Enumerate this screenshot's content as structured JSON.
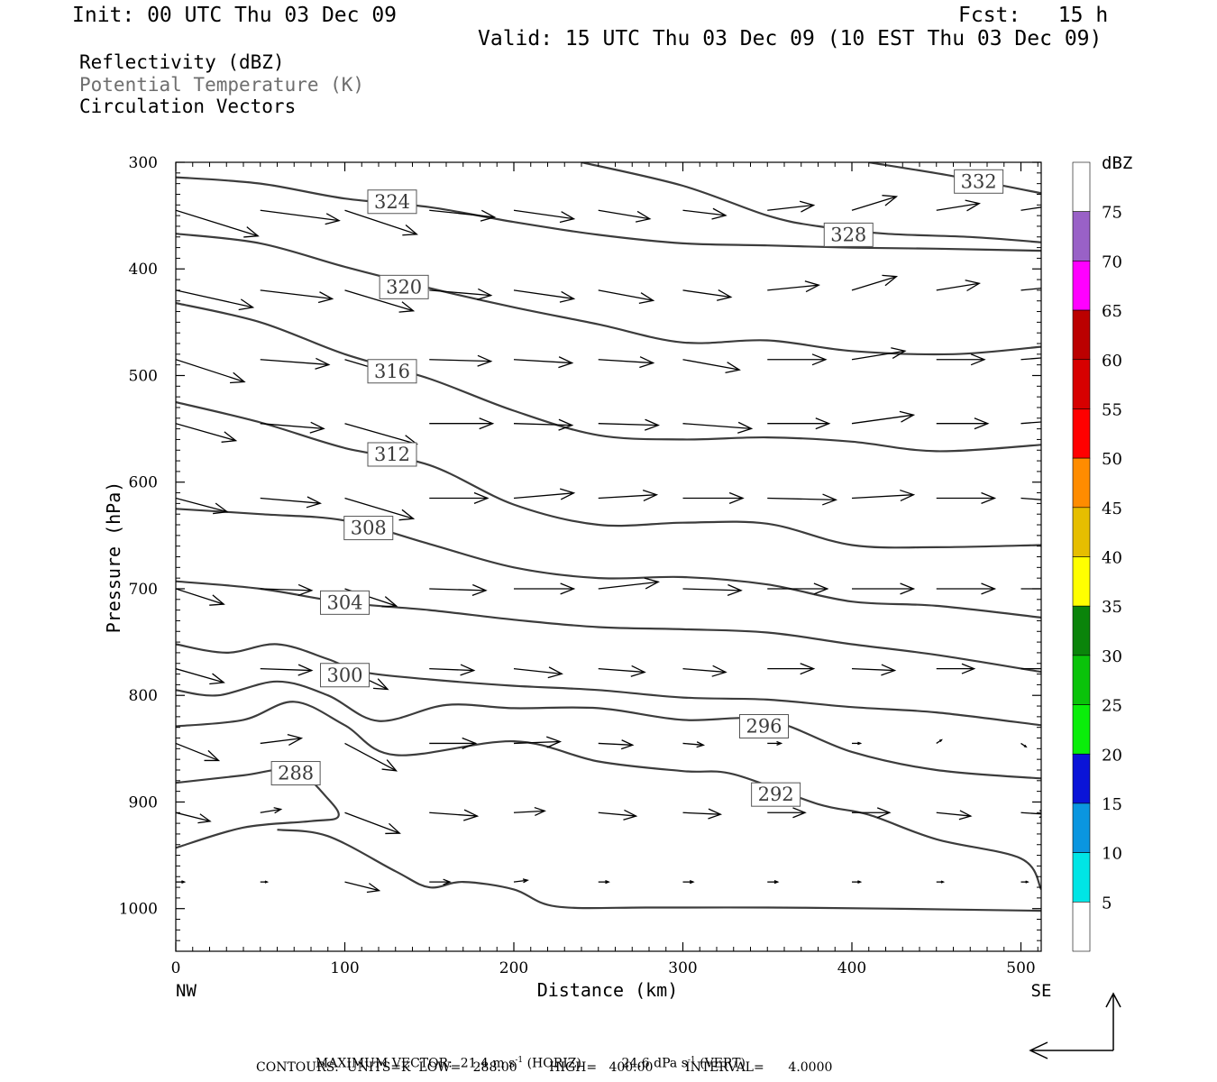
{
  "header": {
    "init": "Init: 00 UTC Thu 03 Dec 09",
    "fcst": "Fcst:   15 h",
    "valid": "Valid: 15 UTC Thu 03 Dec 09 (10 EST Thu 03 Dec 09)"
  },
  "fields": [
    {
      "label": "Reflectivity (dBZ)",
      "color": "#000000"
    },
    {
      "label": "Potential Temperature (K)",
      "color": "#6e6e6e"
    },
    {
      "label": "Circulation Vectors",
      "color": "#000000"
    }
  ],
  "chart_data": {
    "type": "line",
    "xlabel": "Distance (km)",
    "ylabel": "Pressure (hPa)",
    "xlim": [
      0,
      512
    ],
    "ylim": [
      1040,
      300
    ],
    "x_ticks": [
      "0",
      "100",
      "200",
      "300",
      "400",
      "500"
    ],
    "y_ticks": [
      "300",
      "400",
      "500",
      "600",
      "700",
      "800",
      "900",
      "1000"
    ],
    "x_end_labels": {
      "left": "NW",
      "right": "SE"
    },
    "theta_contours": [
      {
        "name": "324",
        "label_at": [
          128,
          337
        ],
        "points": [
          [
            0,
            314
          ],
          [
            50,
            320
          ],
          [
            100,
            334
          ],
          [
            150,
            342
          ],
          [
            200,
            356
          ],
          [
            250,
            368
          ],
          [
            300,
            376
          ],
          [
            350,
            378
          ],
          [
            400,
            380
          ],
          [
            450,
            381
          ],
          [
            512,
            383
          ]
        ]
      },
      {
        "name": "332",
        "label_at": [
          475,
          318
        ],
        "points": [
          [
            410,
            300
          ],
          [
            460,
            313
          ],
          [
            512,
            329
          ]
        ]
      },
      {
        "name": "328",
        "label_at": [
          398,
          368
        ],
        "points": [
          [
            240,
            300
          ],
          [
            300,
            322
          ],
          [
            350,
            350
          ],
          [
            380,
            360
          ],
          [
            420,
            367
          ],
          [
            470,
            370
          ],
          [
            512,
            375
          ]
        ]
      },
      {
        "name": "320",
        "label_at": [
          135,
          417
        ],
        "points": [
          [
            0,
            367
          ],
          [
            50,
            376
          ],
          [
            100,
            398
          ],
          [
            150,
            418
          ],
          [
            200,
            436
          ],
          [
            250,
            452
          ],
          [
            300,
            469
          ],
          [
            350,
            467
          ],
          [
            400,
            477
          ],
          [
            460,
            480
          ],
          [
            512,
            473
          ]
        ]
      },
      {
        "name": "316",
        "label_at": [
          128,
          496
        ],
        "points": [
          [
            0,
            432
          ],
          [
            50,
            450
          ],
          [
            100,
            480
          ],
          [
            150,
            503
          ],
          [
            200,
            533
          ],
          [
            250,
            556
          ],
          [
            300,
            560
          ],
          [
            350,
            558
          ],
          [
            400,
            562
          ],
          [
            450,
            571
          ],
          [
            512,
            565
          ]
        ]
      },
      {
        "name": "312",
        "label_at": [
          128,
          574
        ],
        "points": [
          [
            0,
            525
          ],
          [
            50,
            544
          ],
          [
            100,
            568
          ],
          [
            150,
            584
          ],
          [
            200,
            621
          ],
          [
            250,
            640
          ],
          [
            300,
            638
          ],
          [
            350,
            639
          ],
          [
            400,
            659
          ],
          [
            450,
            661
          ],
          [
            512,
            659
          ]
        ]
      },
      {
        "name": "308",
        "label_at": [
          114,
          643
        ],
        "points": [
          [
            0,
            625
          ],
          [
            50,
            630
          ],
          [
            100,
            636
          ],
          [
            150,
            658
          ],
          [
            200,
            680
          ],
          [
            250,
            690
          ],
          [
            300,
            689
          ],
          [
            350,
            696
          ],
          [
            400,
            712
          ],
          [
            450,
            716
          ],
          [
            512,
            727
          ]
        ]
      },
      {
        "name": "304",
        "label_at": [
          100,
          713
        ],
        "points": [
          [
            0,
            693
          ],
          [
            50,
            700
          ],
          [
            100,
            713
          ],
          [
            150,
            720
          ],
          [
            200,
            729
          ],
          [
            250,
            736
          ],
          [
            300,
            738
          ],
          [
            350,
            741
          ],
          [
            400,
            752
          ],
          [
            450,
            762
          ],
          [
            512,
            778
          ]
        ]
      },
      {
        "name": "300",
        "label_at": [
          100,
          781
        ],
        "points": [
          [
            0,
            752
          ],
          [
            30,
            760
          ],
          [
            60,
            752
          ],
          [
            90,
            766
          ],
          [
            110,
            778
          ],
          [
            150,
            785
          ],
          [
            200,
            791
          ],
          [
            250,
            795
          ],
          [
            300,
            802
          ],
          [
            350,
            804
          ],
          [
            400,
            811
          ],
          [
            450,
            816
          ],
          [
            512,
            828
          ]
        ]
      },
      {
        "name": "296",
        "label_at": [
          348,
          829
        ],
        "points": [
          [
            0,
            795
          ],
          [
            25,
            800
          ],
          [
            60,
            787
          ],
          [
            90,
            800
          ],
          [
            120,
            824
          ],
          [
            160,
            809
          ],
          [
            200,
            812
          ],
          [
            250,
            812
          ],
          [
            300,
            823
          ],
          [
            350,
            823
          ],
          [
            400,
            853
          ],
          [
            450,
            870
          ],
          [
            512,
            878
          ]
        ]
      },
      {
        "name": "292",
        "label_at": [
          355,
          893
        ],
        "points": [
          [
            0,
            829
          ],
          [
            40,
            823
          ],
          [
            70,
            806
          ],
          [
            100,
            828
          ],
          [
            130,
            856
          ],
          [
            200,
            843
          ],
          [
            250,
            862
          ],
          [
            300,
            871
          ],
          [
            330,
            874
          ],
          [
            380,
            902
          ],
          [
            410,
            912
          ],
          [
            450,
            935
          ],
          [
            500,
            953
          ],
          [
            512,
            982
          ]
        ]
      },
      {
        "name": "288",
        "label_at": [
          71,
          873
        ],
        "points": [
          [
            0,
            882
          ],
          [
            40,
            875
          ],
          [
            70,
            870
          ],
          [
            90,
            897
          ],
          [
            96,
            914
          ],
          [
            80,
            918
          ],
          [
            40,
            924
          ],
          [
            0,
            943
          ]
        ]
      },
      {
        "name": "",
        "label_at": null,
        "points": [
          [
            60,
            926
          ],
          [
            90,
            932
          ],
          [
            130,
            965
          ],
          [
            150,
            980
          ],
          [
            170,
            975
          ],
          [
            200,
            982
          ],
          [
            225,
            998
          ],
          [
            280,
            999
          ],
          [
            350,
            999
          ],
          [
            420,
            1000
          ],
          [
            512,
            1002
          ]
        ]
      }
    ],
    "reflectivity_colorbar": {
      "unit": "dBZ",
      "levels": [
        "5",
        "10",
        "15",
        "20",
        "25",
        "30",
        "35",
        "40",
        "45",
        "50",
        "55",
        "60",
        "65",
        "70",
        "75"
      ],
      "colors": [
        "#ffffff",
        "#00e5e5",
        "#0a96e0",
        "#0a14d8",
        "#0aee0a",
        "#0ac30a",
        "#0a840a",
        "#ffff00",
        "#e6be00",
        "#ff8c00",
        "#ff0000",
        "#d70000",
        "#bb0000",
        "#ff00ff",
        "#9961c7",
        "#ffffff"
      ]
    },
    "vectors_rows": [
      {
        "p": 345,
        "x": [
          0,
          50,
          100,
          150,
          200,
          250,
          300,
          350,
          400,
          450,
          500
        ],
        "u": [
          48,
          46,
          42,
          38,
          35,
          30,
          25,
          27,
          26,
          25,
          20
        ],
        "w": [
          -15,
          -6,
          -14,
          -4,
          -5,
          -5,
          -3,
          3,
          8,
          4,
          3
        ]
      },
      {
        "p": 420,
        "x": [
          0,
          50,
          100,
          150,
          200,
          250,
          300,
          350,
          400,
          450,
          500
        ],
        "u": [
          45,
          42,
          40,
          36,
          35,
          32,
          28,
          30,
          26,
          25,
          20
        ],
        "w": [
          -10,
          -5,
          -12,
          -3,
          -5,
          -6,
          -4,
          3,
          8,
          4,
          2
        ]
      },
      {
        "p": 485,
        "x": [
          0,
          50,
          100,
          150,
          200,
          250,
          300,
          350,
          400,
          450,
          500
        ],
        "u": [
          40,
          40,
          40,
          36,
          34,
          32,
          33,
          34,
          31,
          28,
          26
        ],
        "w": [
          -13,
          -3,
          -12,
          -1,
          -2,
          -2,
          -6,
          0,
          5,
          0,
          2
        ]
      },
      {
        "p": 545,
        "x": [
          0,
          50,
          100,
          150,
          200,
          250,
          300,
          350,
          400,
          450,
          500
        ],
        "u": [
          35,
          37,
          42,
          37,
          34,
          35,
          40,
          36,
          36,
          30,
          26
        ],
        "w": [
          -10,
          -3,
          -12,
          0,
          -1,
          -1,
          -3,
          0,
          5,
          0,
          2
        ]
      },
      {
        "p": 615,
        "x": [
          0,
          50,
          100,
          150,
          200,
          250,
          300,
          350,
          400,
          450,
          500
        ],
        "u": [
          30,
          35,
          40,
          34,
          35,
          34,
          35,
          40,
          36,
          34,
          26
        ],
        "w": [
          -8,
          -3,
          -12,
          0,
          3,
          2,
          0,
          -1,
          2,
          0,
          -2
        ]
      },
      {
        "p": 700,
        "x": [
          0,
          50,
          100,
          150,
          200,
          250,
          300,
          350,
          400,
          450,
          500
        ],
        "u": [
          28,
          30,
          30,
          33,
          35,
          35,
          34,
          35,
          36,
          34,
          28
        ],
        "w": [
          -9,
          -1,
          -10,
          -1,
          0,
          4,
          -1,
          0,
          0,
          0,
          0
        ]
      },
      {
        "p": 775,
        "x": [
          0,
          50,
          100,
          150,
          200,
          250,
          300,
          350,
          400,
          450,
          500
        ],
        "u": [
          28,
          30,
          25,
          26,
          28,
          27,
          25,
          27,
          25,
          22,
          24
        ],
        "w": [
          -8,
          -1,
          -12,
          -1,
          -3,
          -2,
          -2,
          0,
          -1,
          0,
          0
        ]
      },
      {
        "p": 845,
        "x": [
          0,
          50,
          100,
          150,
          200,
          250,
          300,
          350,
          400,
          450,
          500
        ],
        "u": [
          25,
          24,
          30,
          27,
          27,
          20,
          12,
          8,
          5,
          3,
          3
        ],
        "w": [
          -10,
          3,
          -16,
          0,
          1,
          -1,
          -1,
          0,
          0,
          2,
          -2
        ]
      },
      {
        "p": 910,
        "x": [
          0,
          50,
          100,
          150,
          200,
          250,
          300,
          350,
          400,
          450,
          500
        ],
        "u": [
          20,
          12,
          32,
          28,
          18,
          22,
          22,
          22,
          22,
          20,
          16
        ],
        "w": [
          -5,
          2,
          -12,
          -2,
          1,
          -2,
          -1,
          0,
          0,
          -2,
          -1
        ]
      },
      {
        "p": 975,
        "x": [
          0,
          50,
          100,
          150,
          200,
          250,
          300,
          350,
          400,
          450,
          500
        ],
        "u": [
          5,
          4,
          20,
          12,
          8,
          6,
          6,
          6,
          5,
          4,
          4
        ],
        "w": [
          0,
          0,
          -5,
          0,
          1,
          0,
          0,
          0,
          0,
          0,
          0
        ]
      }
    ],
    "reference_vector": {
      "horiz": "21.4 m s⁻¹",
      "vert": "24.6 dPa s⁻¹"
    }
  },
  "footer": {
    "max_vector_label": "MAXIMUM VECTOR:",
    "max_vector_h": "21.4 m s",
    "max_vector_h_unit": "(HORIZ)",
    "max_vector_v": "24.6 dPa s",
    "max_vector_v_unit": "(VERT)",
    "exponent": "-1",
    "contours": "CONTOURS:  UNITS=K  LOW=   288.00        HIGH=   400.00        INTERVAL=      4.0000"
  }
}
